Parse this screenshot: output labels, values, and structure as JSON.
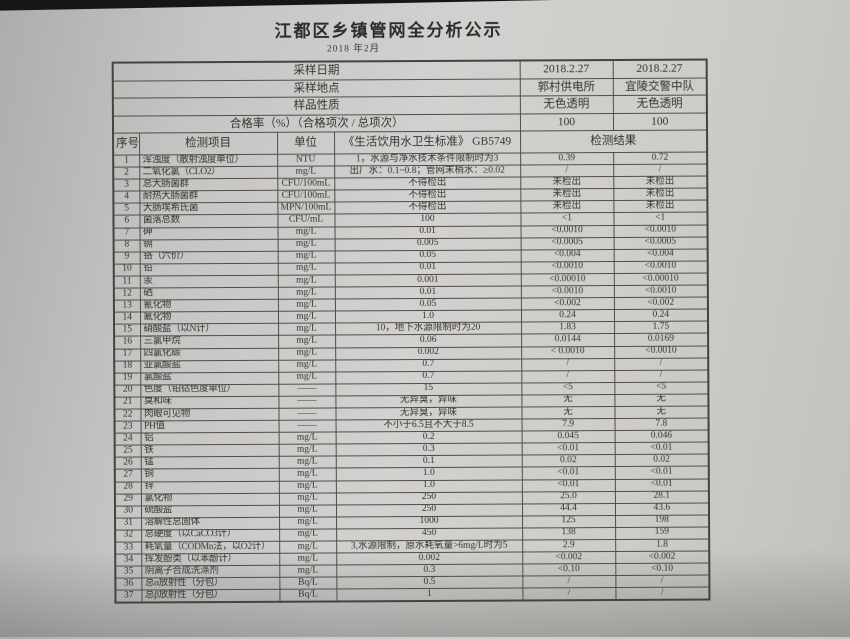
{
  "doc": {
    "title": "江都区乡镇管网全分析公示",
    "subtitle": "2018 年2月"
  },
  "info_rows": [
    {
      "label": "采样日期",
      "v1": "2018.2.27",
      "v2": "2018.2.27"
    },
    {
      "label": "采样地点",
      "v1": "郭村供电所",
      "v2": "宜陵交警中队"
    },
    {
      "label": "样品性质",
      "v1": "无色透明",
      "v2": "无色透明"
    },
    {
      "label": "合格率（%）（合格项次 / 总项次）",
      "v1": "100",
      "v2": "100"
    }
  ],
  "columns": {
    "no": "序号",
    "item": "检测项目",
    "unit": "单位",
    "standard": "《生活饮用水卫生标准》 GB5749",
    "result": "检测结果"
  },
  "rows": [
    [
      "1",
      "浑浊度（散射浊度单位）",
      "NTU",
      "1，水源与净水技术条件限制时为3",
      "0.39",
      "0.72"
    ],
    [
      "2",
      "二氧化氯（CLO2）",
      "mg/L",
      "出厂水：0.1~0.8；管网末梢水：≥0.02",
      "/",
      "/"
    ],
    [
      "3",
      "总大肠菌群",
      "CFU/100mL",
      "不得检出",
      "未检出",
      "未检出"
    ],
    [
      "4",
      "耐热大肠菌群",
      "CFU/100mL",
      "不得检出",
      "未检出",
      "未检出"
    ],
    [
      "5",
      "大肠埃希氏菌",
      "MPN/100mL",
      "不得检出",
      "未检出",
      "未检出"
    ],
    [
      "6",
      "菌落总数",
      "CFU/mL",
      "100",
      "<1",
      "<1"
    ],
    [
      "7",
      "砷",
      "mg/L",
      "0.01",
      "<0.0010",
      "<0.0010"
    ],
    [
      "8",
      "镉",
      "mg/L",
      "0.005",
      "<0.0005",
      "<0.0005"
    ],
    [
      "9",
      "铬（六价）",
      "mg/L",
      "0.05",
      "<0.004",
      "<0.004"
    ],
    [
      "10",
      "铅",
      "mg/L",
      "0.01",
      "<0.0010",
      "<0.0010"
    ],
    [
      "11",
      "汞",
      "mg/L",
      "0.001",
      "<0.00010",
      "<0.00010"
    ],
    [
      "12",
      "硒",
      "mg/L",
      "0.01",
      "<0.0010",
      "<0.0010"
    ],
    [
      "13",
      "氰化物",
      "mg/L",
      "0.05",
      "<0.002",
      "<0.002"
    ],
    [
      "14",
      "氟化物",
      "mg/L",
      "1.0",
      "0.24",
      "0.24"
    ],
    [
      "15",
      "硝酸盐（以N计）",
      "mg/L",
      "10，地下水源限制时为20",
      "1.83",
      "1.75"
    ],
    [
      "16",
      "三氯甲烷",
      "mg/L",
      "0.06",
      "0.0144",
      "0.0169"
    ],
    [
      "17",
      "四氯化碳",
      "mg/L",
      "0.002",
      "< 0.0010",
      "<0.0010"
    ],
    [
      "18",
      "亚氯酸盐",
      "mg/L",
      "0.7",
      "/",
      "/"
    ],
    [
      "19",
      "氯酸盐",
      "mg/L",
      "0.7",
      "/",
      "/"
    ],
    [
      "20",
      "色度（铂钴色度单位）",
      "——",
      "15",
      "<5",
      "<5"
    ],
    [
      "21",
      "臭和味",
      "——",
      "无异臭，异味",
      "无",
      "无"
    ],
    [
      "22",
      "肉眼可见物",
      "——",
      "无异臭，异味",
      "无",
      "无"
    ],
    [
      "23",
      "PH值",
      "——",
      "不小于6.5且不大于8.5",
      "7.9",
      "7.8"
    ],
    [
      "24",
      "铝",
      "mg/L",
      "0.2",
      "0.045",
      "0.046"
    ],
    [
      "25",
      "铁",
      "mg/L",
      "0.3",
      "<0.01",
      "<0.01"
    ],
    [
      "26",
      "锰",
      "mg/L",
      "0.1",
      "0.02",
      "0.02"
    ],
    [
      "27",
      "铜",
      "mg/L",
      "1.0",
      "<0.01",
      "<0.01"
    ],
    [
      "28",
      "锌",
      "mg/L",
      "1.0",
      "<0.01",
      "<0.01"
    ],
    [
      "29",
      "氯化物",
      "mg/L",
      "250",
      "25.0",
      "28.1"
    ],
    [
      "30",
      "硫酸盐",
      "mg/L",
      "250",
      "44.4",
      "43.6"
    ],
    [
      "31",
      "溶解性总固体",
      "mg/L",
      "1000",
      "125",
      "198"
    ],
    [
      "32",
      "总硬度（以CaCO3计）",
      "mg/L",
      "450",
      "138",
      "159"
    ],
    [
      "33",
      "耗氧量（CODMn法，以O2计）",
      "mg/L",
      "3,水源限制，原水耗氧量>6mg/L时为5",
      "2.9",
      "1.8"
    ],
    [
      "34",
      "挥发酚类（以苯酚计）",
      "mg/L",
      "0.002",
      "<0.002",
      "<0.002"
    ],
    [
      "35",
      "阴离子合成洗涤剂",
      "mg/L",
      "0.3",
      "<0.10",
      "<0.10"
    ],
    [
      "36",
      "总α放射性（分包）",
      "Bq/L",
      "0.5",
      "/",
      "/"
    ],
    [
      "37",
      "总β放射性（分包）",
      "Bq/L",
      "1",
      "/",
      "/"
    ]
  ]
}
